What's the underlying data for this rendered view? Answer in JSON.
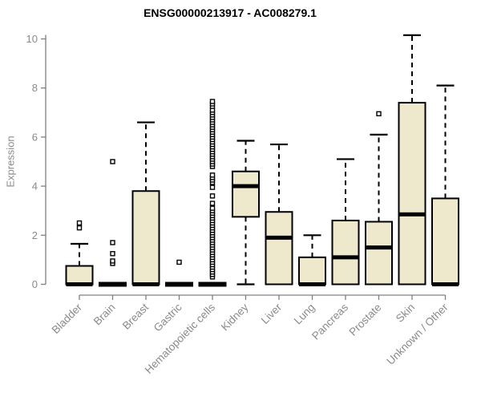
{
  "chart_data": {
    "type": "boxplot",
    "title": "ENSG00000213917 - AC008279.1",
    "ylabel": "Expression",
    "xlabel": "",
    "ylim": [
      0,
      10
    ],
    "yticks": [
      "0",
      "2",
      "4",
      "6",
      "8",
      "10"
    ],
    "grid": "off",
    "legend": "none",
    "colors": {
      "box_fill": "#EEE8CD",
      "box_stroke": "#000000",
      "axis": "#808080",
      "tick_label": "#8a8a8a",
      "title": "#000000",
      "background": "#ffffff"
    },
    "categories": [
      "Bladder",
      "Brain",
      "Breast",
      "Gastric",
      "Hematopoietic cells",
      "Kidney",
      "Liver",
      "Lung",
      "Pancreas",
      "Prostate",
      "Skin",
      "Unknown / Other"
    ],
    "series": [
      {
        "name": "Bladder",
        "q1": 0,
        "median": 0,
        "q3": 0.75,
        "whisker_low": 0,
        "whisker_high": 1.65,
        "outliers": [
          2.3,
          2.5
        ]
      },
      {
        "name": "Brain",
        "q1": 0,
        "median": 0,
        "q3": 0,
        "whisker_low": 0,
        "whisker_high": 0,
        "outliers": [
          0.85,
          0.95,
          1.25,
          1.7,
          5.0
        ]
      },
      {
        "name": "Breast",
        "q1": 0,
        "median": 0,
        "q3": 3.8,
        "whisker_low": 0,
        "whisker_high": 6.6,
        "outliers": []
      },
      {
        "name": "Gastric",
        "q1": 0,
        "median": 0,
        "q3": 0,
        "whisker_low": 0,
        "whisker_high": 0,
        "outliers": [
          0.9
        ]
      },
      {
        "name": "Hematopoietic cells",
        "q1": 0,
        "median": 0,
        "q3": 0,
        "whisker_low": 0,
        "whisker_high": 0,
        "outliers": [
          0.3,
          0.4,
          0.5,
          0.6,
          0.7,
          0.8,
          0.9,
          1.0,
          1.1,
          1.2,
          1.3,
          1.4,
          1.5,
          1.6,
          1.7,
          1.8,
          1.9,
          2.0,
          2.1,
          2.2,
          2.3,
          2.4,
          2.5,
          2.6,
          2.7,
          2.8,
          2.9,
          3.0,
          3.1,
          3.3,
          3.6,
          3.95,
          4.15,
          4.25,
          4.35,
          4.45,
          4.8,
          4.9,
          5.0,
          5.1,
          5.2,
          5.3,
          5.4,
          5.5,
          5.6,
          5.7,
          5.8,
          5.9,
          6.0,
          6.1,
          6.2,
          6.3,
          6.4,
          6.5,
          6.6,
          6.7,
          6.8,
          6.9,
          7.0,
          7.1,
          7.25,
          7.35,
          7.45
        ]
      },
      {
        "name": "Kidney",
        "q1": 2.75,
        "median": 4.0,
        "q3": 4.6,
        "whisker_low": 0,
        "whisker_high": 5.85,
        "outliers": []
      },
      {
        "name": "Liver",
        "q1": 0,
        "median": 1.9,
        "q3": 2.95,
        "whisker_low": 0,
        "whisker_high": 5.7,
        "outliers": []
      },
      {
        "name": "Lung",
        "q1": 0,
        "median": 0,
        "q3": 1.1,
        "whisker_low": 0,
        "whisker_high": 2.0,
        "outliers": []
      },
      {
        "name": "Pancreas",
        "q1": 0,
        "median": 1.1,
        "q3": 2.6,
        "whisker_low": 0,
        "whisker_high": 5.1,
        "outliers": []
      },
      {
        "name": "Prostate",
        "q1": 0,
        "median": 1.5,
        "q3": 2.55,
        "whisker_low": 0,
        "whisker_high": 6.1,
        "outliers": [
          6.95
        ]
      },
      {
        "name": "Skin",
        "q1": 0,
        "median": 2.85,
        "q3": 7.4,
        "whisker_low": 0,
        "whisker_high": 10.15,
        "outliers": []
      },
      {
        "name": "Unknown / Other",
        "q1": 0,
        "median": 0,
        "q3": 3.5,
        "whisker_low": 0,
        "whisker_high": 8.1,
        "outliers": []
      }
    ]
  }
}
